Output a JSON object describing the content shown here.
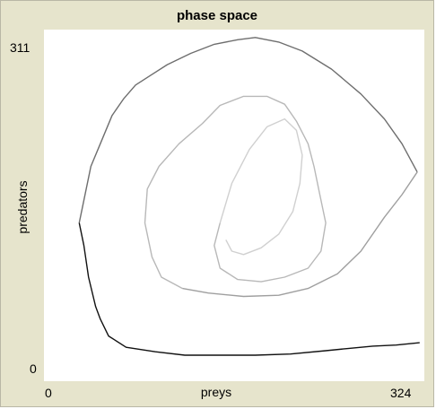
{
  "plot": {
    "title": "phase space",
    "x_axis": {
      "label": "preys",
      "min_label": "0",
      "max_label": "324"
    },
    "y_axis": {
      "label": "predators",
      "min_label": "0",
      "max_label": "311"
    }
  },
  "chart_data": {
    "type": "line",
    "title": "phase space",
    "xlabel": "preys",
    "ylabel": "predators",
    "xlim": [
      0,
      324
    ],
    "ylim": [
      0,
      311
    ],
    "grid": false,
    "series": [
      {
        "color": "#111111",
        "x": [
          320,
          300,
          280,
          260,
          240,
          210,
          180,
          150,
          120,
          95,
          70,
          55,
          48,
          44,
          38,
          34,
          30
        ],
        "y": [
          34,
          32,
          31,
          29,
          27,
          24,
          23,
          23,
          23,
          26,
          30,
          40,
          55,
          66,
          92,
          120,
          140
        ]
      },
      {
        "color": "#6e6e6e",
        "x": [
          30,
          34,
          40,
          48,
          58,
          68,
          78,
          90,
          105,
          125,
          145,
          165,
          180,
          200,
          220,
          245,
          270,
          290,
          305,
          318
        ],
        "y": [
          140,
          160,
          190,
          210,
          235,
          250,
          262,
          270,
          280,
          290,
          298,
          302,
          304,
          300,
          292,
          276,
          254,
          232,
          210,
          185
        ]
      },
      {
        "color": "#9f9f9f",
        "x": [
          318,
          305,
          290,
          270,
          250,
          225,
          200,
          170,
          140,
          118
        ],
        "y": [
          185,
          165,
          145,
          115,
          95,
          82,
          76,
          75,
          78,
          82
        ]
      },
      {
        "color": "#b8b8b8",
        "x": [
          118,
          100,
          92,
          86,
          88,
          98,
          115,
          135,
          150,
          170,
          190,
          205,
          215,
          225,
          230,
          235,
          240,
          236,
          225,
          205,
          185,
          165,
          150,
          145,
          150
        ],
        "y": [
          82,
          92,
          110,
          140,
          170,
          190,
          210,
          228,
          244,
          252,
          252,
          245,
          230,
          210,
          190,
          165,
          140,
          115,
          100,
          92,
          88,
          90,
          100,
          120,
          140
        ]
      },
      {
        "color": "#d0d0d0",
        "x": [
          150,
          160,
          175,
          190,
          205,
          215,
          220,
          218,
          212,
          200,
          185,
          170,
          160,
          155
        ],
        "y": [
          140,
          175,
          205,
          225,
          232,
          222,
          200,
          175,
          150,
          130,
          118,
          112,
          115,
          125
        ]
      }
    ]
  }
}
